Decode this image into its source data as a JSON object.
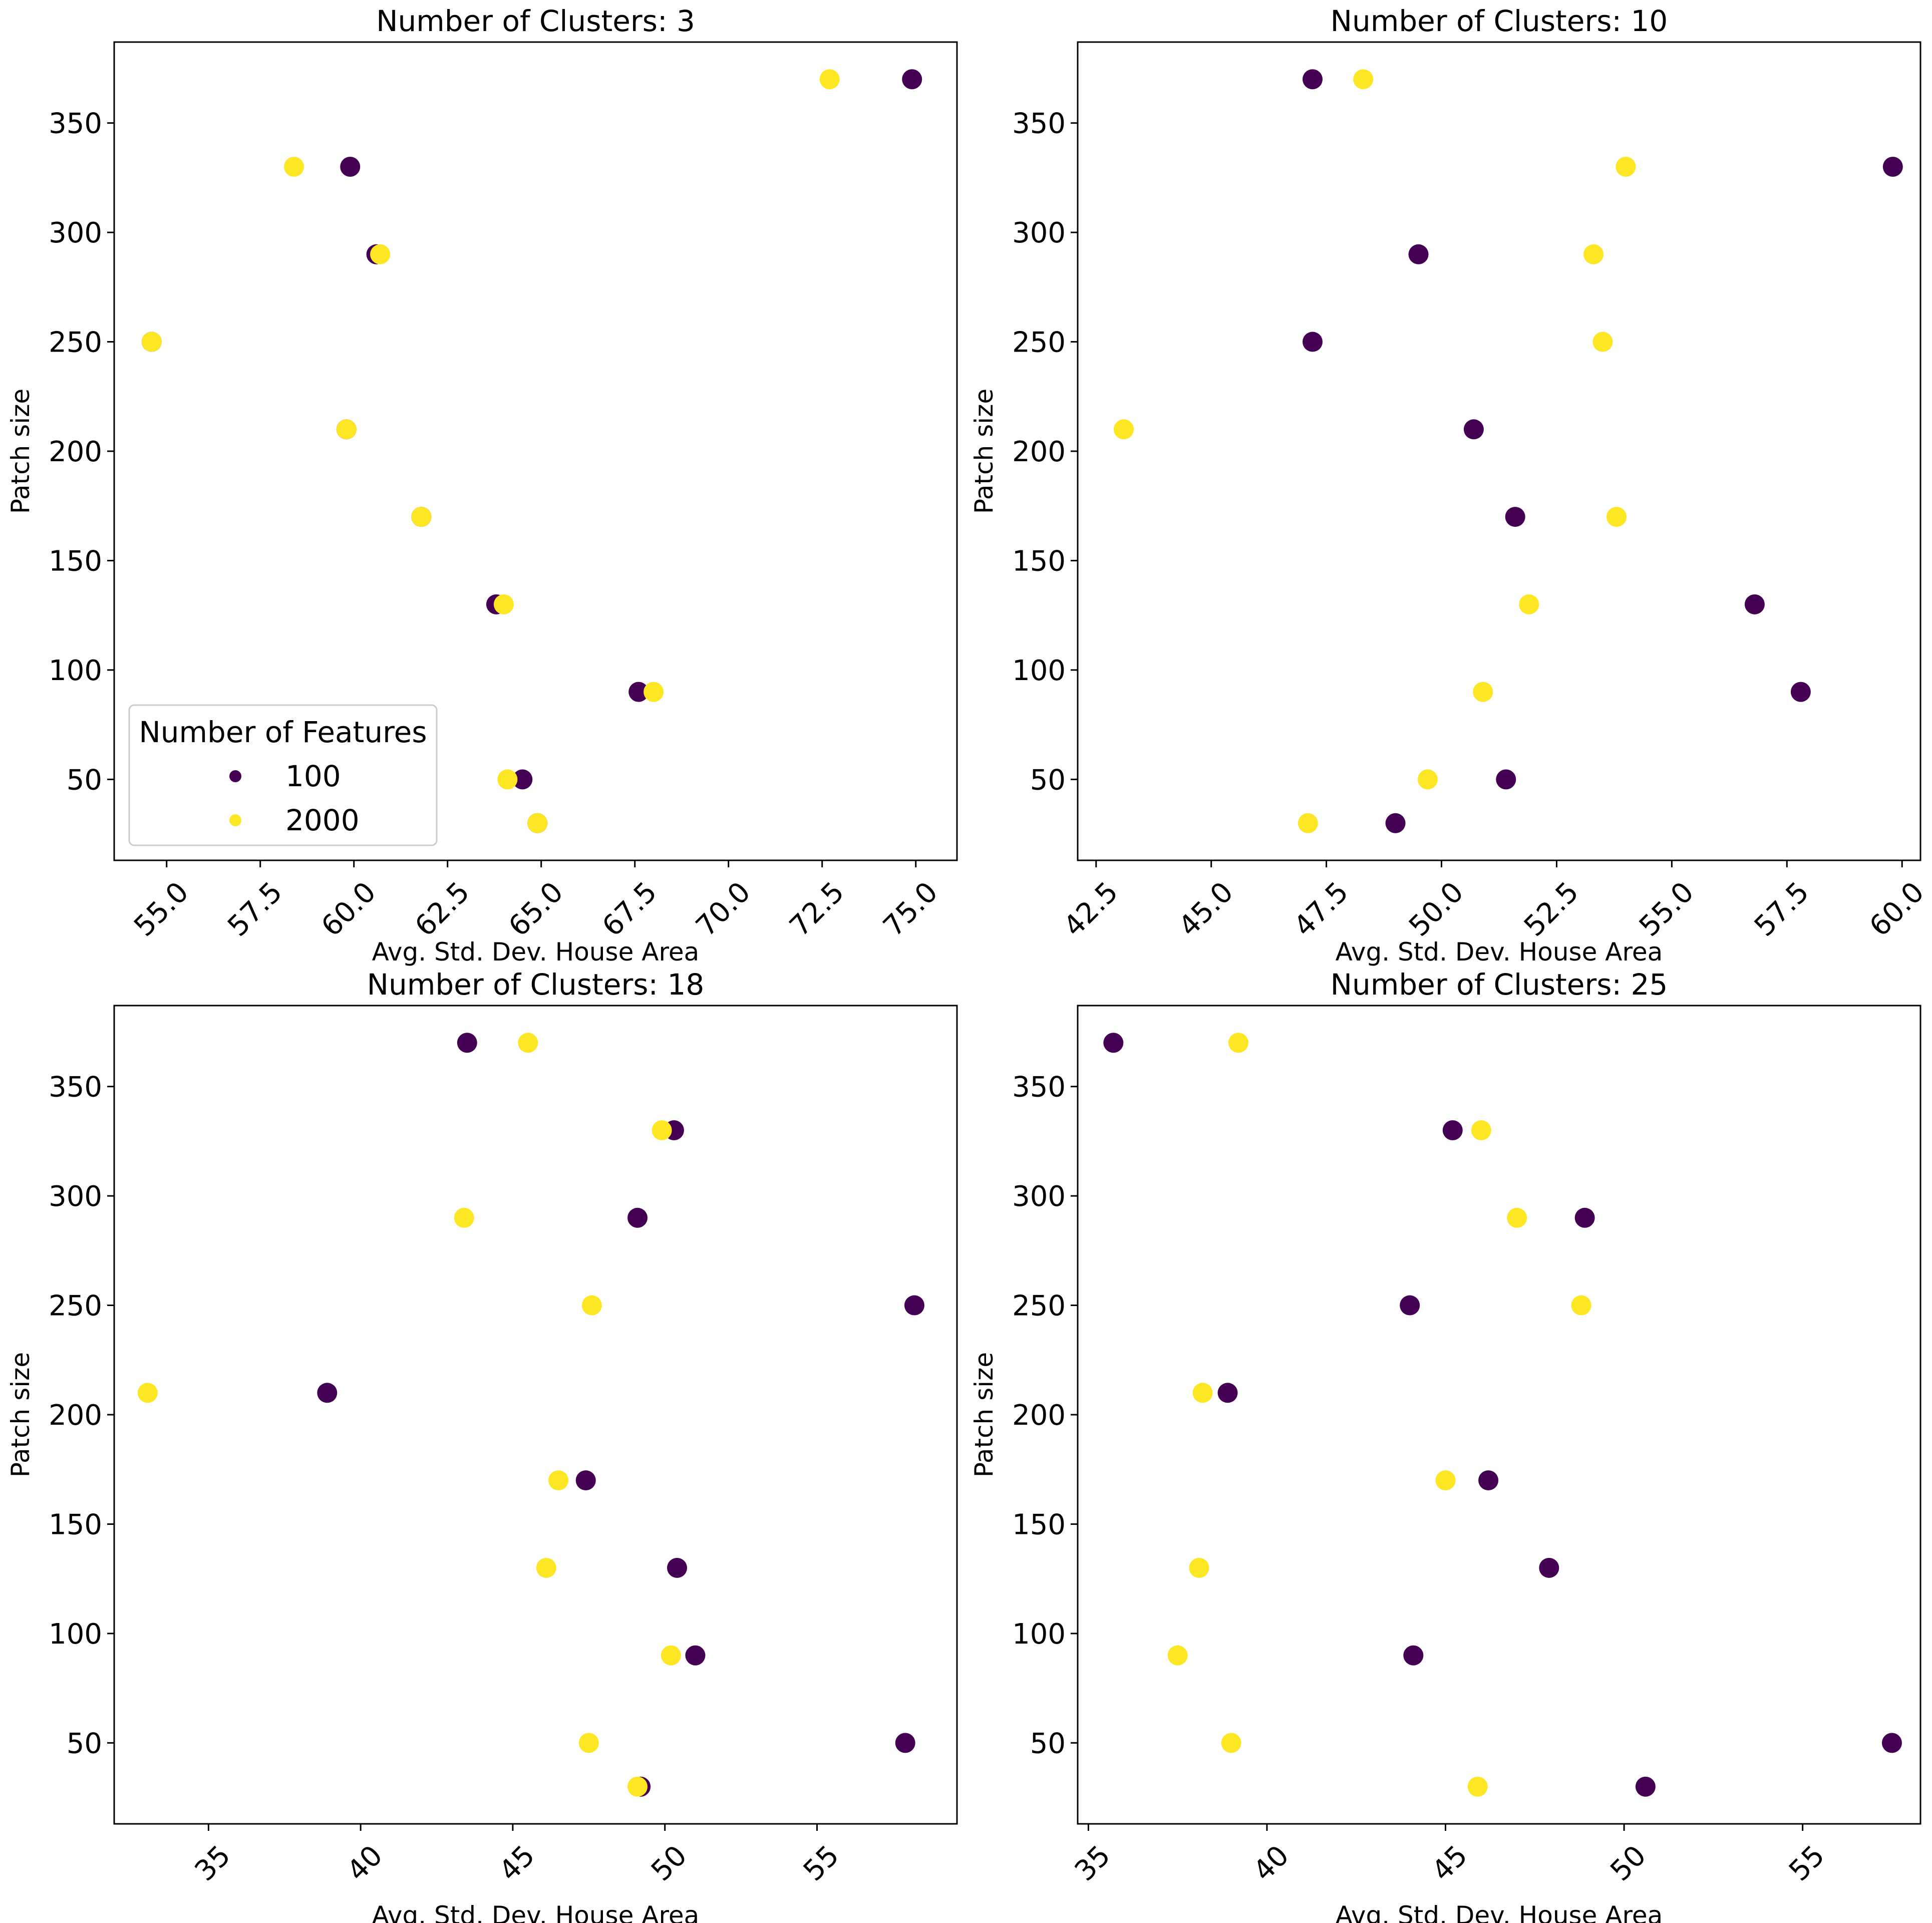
{
  "chart_data": [
    {
      "type": "scatter",
      "title": "Number of Clusters: 3",
      "xlabel": "Avg. Std. Dev. House Area",
      "ylabel": "Patch size",
      "xlim": [
        53.6,
        76.1
      ],
      "ylim": [
        13,
        387
      ],
      "xticks": [
        55.0,
        57.5,
        60.0,
        62.5,
        65.0,
        67.5,
        70.0,
        72.5,
        75.0
      ],
      "xtick_labels": [
        "55.0",
        "57.5",
        "60.0",
        "62.5",
        "65.0",
        "67.5",
        "70.0",
        "72.5",
        "75.0"
      ],
      "yticks": [
        50,
        100,
        150,
        200,
        250,
        300,
        350
      ],
      "ytick_labels": [
        "50",
        "100",
        "150",
        "200",
        "250",
        "300",
        "350"
      ],
      "legend": "lower-left",
      "series": [
        {
          "name": "100",
          "color": "#440154",
          "x": [
            74.9,
            59.9,
            60.6,
            54.6,
            59.8,
            61.8,
            63.8,
            67.6,
            64.5,
            64.9
          ],
          "y": [
            370,
            330,
            290,
            250,
            210,
            170,
            130,
            90,
            50,
            30
          ]
        },
        {
          "name": "2000",
          "color": "#fde725",
          "x": [
            72.7,
            58.4,
            60.7,
            54.6,
            59.8,
            61.8,
            64.0,
            68.0,
            64.1,
            64.9
          ],
          "y": [
            370,
            330,
            290,
            250,
            210,
            170,
            130,
            90,
            50,
            30
          ]
        }
      ]
    },
    {
      "type": "scatter",
      "title": "Number of Clusters: 10",
      "xlabel": "Avg. Std. Dev. House Area",
      "ylabel": "Patch size",
      "xlim": [
        42.1,
        60.4
      ],
      "ylim": [
        13,
        387
      ],
      "xticks": [
        42.5,
        45.0,
        47.5,
        50.0,
        52.5,
        55.0,
        57.5,
        60.0
      ],
      "xtick_labels": [
        "42.5",
        "45.0",
        "47.5",
        "50.0",
        "52.5",
        "55.0",
        "57.5",
        "60.0"
      ],
      "yticks": [
        50,
        100,
        150,
        200,
        250,
        300,
        350
      ],
      "ytick_labels": [
        "50",
        "100",
        "150",
        "200",
        "250",
        "300",
        "350"
      ],
      "series": [
        {
          "name": "100",
          "color": "#440154",
          "x": [
            47.2,
            59.8,
            49.5,
            47.2,
            50.7,
            51.6,
            56.8,
            57.8,
            51.4,
            49.0
          ],
          "y": [
            370,
            330,
            290,
            250,
            210,
            170,
            130,
            90,
            50,
            30
          ]
        },
        {
          "name": "2000",
          "color": "#fde725",
          "x": [
            48.3,
            54.0,
            53.3,
            53.5,
            43.1,
            53.8,
            51.9,
            50.9,
            49.7,
            47.1
          ],
          "y": [
            370,
            330,
            290,
            250,
            210,
            170,
            130,
            90,
            50,
            30
          ]
        }
      ]
    },
    {
      "type": "scatter",
      "title": "Number of Clusters: 18",
      "xlabel": "Avg. Std. Dev. House Area",
      "ylabel": "Patch size",
      "xlim": [
        31.9,
        59.6
      ],
      "ylim": [
        13,
        387
      ],
      "xticks": [
        35,
        40,
        45,
        50,
        55
      ],
      "xtick_labels": [
        "35",
        "40",
        "45",
        "50",
        "55"
      ],
      "yticks": [
        50,
        100,
        150,
        200,
        250,
        300,
        350
      ],
      "ytick_labels": [
        "50",
        "100",
        "150",
        "200",
        "250",
        "300",
        "350"
      ],
      "series": [
        {
          "name": "100",
          "color": "#440154",
          "x": [
            43.5,
            50.3,
            49.1,
            58.2,
            38.9,
            47.4,
            50.4,
            51.0,
            57.9,
            49.2
          ],
          "y": [
            370,
            330,
            290,
            250,
            210,
            170,
            130,
            90,
            50,
            30
          ]
        },
        {
          "name": "2000",
          "color": "#fde725",
          "x": [
            45.5,
            49.9,
            43.4,
            47.6,
            33.0,
            46.5,
            46.1,
            50.2,
            47.5,
            49.1
          ],
          "y": [
            370,
            330,
            290,
            250,
            210,
            170,
            130,
            90,
            50,
            30
          ]
        }
      ]
    },
    {
      "type": "scatter",
      "title": "Number of Clusters: 25",
      "xlabel": "Avg. Std. Dev. House Area",
      "ylabel": "Patch size",
      "xlim": [
        34.7,
        58.3
      ],
      "ylim": [
        13,
        387
      ],
      "xticks": [
        35,
        40,
        45,
        50,
        55
      ],
      "xtick_labels": [
        "35",
        "40",
        "45",
        "50",
        "55"
      ],
      "yticks": [
        50,
        100,
        150,
        200,
        250,
        300,
        350
      ],
      "ytick_labels": [
        "50",
        "100",
        "150",
        "200",
        "250",
        "300",
        "350"
      ],
      "series": [
        {
          "name": "100",
          "color": "#440154",
          "x": [
            35.7,
            45.2,
            48.9,
            44.0,
            38.9,
            46.2,
            47.9,
            44.1,
            57.5,
            50.6
          ],
          "y": [
            370,
            330,
            290,
            250,
            210,
            170,
            130,
            90,
            50,
            30
          ]
        },
        {
          "name": "2000",
          "color": "#fde725",
          "x": [
            39.2,
            46.0,
            47.0,
            48.8,
            38.2,
            45.0,
            38.1,
            37.5,
            39.0,
            45.9
          ],
          "y": [
            370,
            330,
            290,
            250,
            210,
            170,
            130,
            90,
            50,
            30
          ]
        }
      ]
    }
  ],
  "legend": {
    "title": "Number of Features",
    "entries": [
      {
        "label": "100",
        "color": "#440154"
      },
      {
        "label": "2000",
        "color": "#fde725"
      }
    ]
  }
}
